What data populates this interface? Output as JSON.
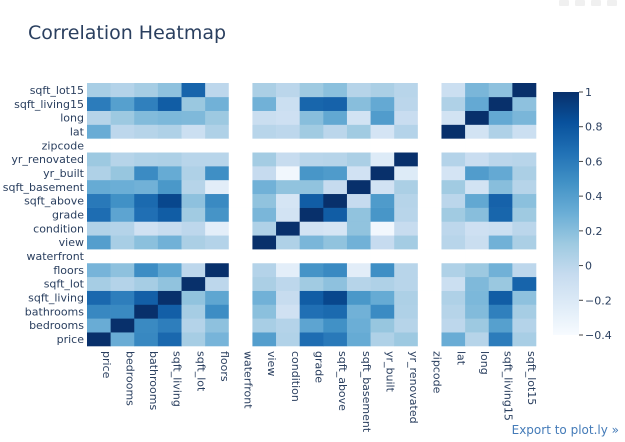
{
  "export_label": "Export to plot.ly »",
  "chart_data": {
    "type": "heatmap",
    "title": "Correlation Heatmap",
    "variables": [
      "price",
      "bedrooms",
      "bathrooms",
      "sqft_living",
      "sqft_lot",
      "floors",
      "waterfront",
      "view",
      "condition",
      "grade",
      "sqft_above",
      "sqft_basement",
      "yr_built",
      "yr_renovated",
      "zipcode",
      "lat",
      "long",
      "sqft_living15",
      "sqft_lot15"
    ],
    "x": [
      "price",
      "bedrooms",
      "bathrooms",
      "sqft_living",
      "sqft_lot",
      "floors",
      "waterfront",
      "view",
      "condition",
      "grade",
      "sqft_above",
      "sqft_basement",
      "yr_built",
      "yr_renovated",
      "zipcode",
      "lat",
      "long",
      "sqft_living15",
      "sqft_lot15"
    ],
    "y": [
      "price",
      "bedrooms",
      "bathrooms",
      "sqft_living",
      "sqft_lot",
      "floors",
      "waterfront",
      "view",
      "condition",
      "grade",
      "sqft_above",
      "sqft_basement",
      "yr_built",
      "yr_renovated",
      "zipcode",
      "lat",
      "long",
      "sqft_living15",
      "sqft_lot15"
    ],
    "z": [
      [
        1,
        0.31,
        0.53,
        0.7,
        0.09,
        0.26,
        null,
        0.4,
        0.04,
        0.67,
        0.61,
        0.32,
        0.05,
        0.13,
        null,
        0.31,
        0.02,
        0.59,
        0.08
      ],
      [
        0.31,
        1,
        0.52,
        0.58,
        0.03,
        0.18,
        null,
        0.08,
        0.03,
        0.36,
        0.48,
        0.3,
        0.15,
        0.02,
        null,
        -0.01,
        0.13,
        0.39,
        0.03
      ],
      [
        0.53,
        0.52,
        1,
        0.75,
        0.09,
        0.5,
        null,
        0.19,
        -0.12,
        0.66,
        0.69,
        0.28,
        0.51,
        0.05,
        null,
        0.02,
        0.22,
        0.57,
        0.09
      ],
      [
        0.7,
        0.58,
        0.75,
        1,
        0.17,
        0.35,
        null,
        0.28,
        -0.06,
        0.76,
        0.88,
        0.44,
        0.32,
        0.06,
        null,
        0.05,
        0.24,
        0.76,
        0.18
      ],
      [
        0.09,
        0.03,
        0.09,
        0.17,
        1,
        -0.01,
        null,
        0.07,
        -0.01,
        0.11,
        0.18,
        0.02,
        0.05,
        0.01,
        null,
        -0.09,
        0.23,
        0.14,
        0.72
      ],
      [
        0.26,
        0.18,
        0.5,
        0.35,
        -0.01,
        1,
        null,
        0.03,
        -0.26,
        0.46,
        0.52,
        -0.25,
        0.49,
        0.01,
        null,
        0.05,
        0.13,
        0.28,
        -0.01
      ],
      [
        null,
        null,
        null,
        null,
        null,
        null,
        null,
        null,
        null,
        null,
        null,
        null,
        null,
        null,
        null,
        null,
        null,
        null,
        null
      ],
      [
        0.4,
        0.08,
        0.19,
        0.28,
        0.07,
        0.03,
        null,
        1,
        0.05,
        0.25,
        0.17,
        0.28,
        -0.05,
        0.1,
        null,
        0.01,
        -0.08,
        0.28,
        0.07
      ],
      [
        0.04,
        0.03,
        -0.12,
        -0.06,
        -0.01,
        -0.26,
        null,
        0.05,
        1,
        -0.14,
        -0.16,
        0.17,
        -0.36,
        -0.06,
        null,
        -0.01,
        -0.11,
        -0.09,
        -0.0
      ],
      [
        0.67,
        0.36,
        0.66,
        0.76,
        0.11,
        0.46,
        null,
        0.25,
        -0.14,
        1,
        0.76,
        0.17,
        0.45,
        0.01,
        null,
        0.11,
        0.2,
        0.71,
        0.12
      ],
      [
        0.61,
        0.48,
        0.69,
        0.88,
        0.18,
        0.52,
        null,
        0.17,
        -0.16,
        0.76,
        1,
        -0.05,
        0.42,
        0.02,
        null,
        -0.0,
        0.34,
        0.73,
        0.19
      ],
      [
        0.32,
        0.3,
        0.28,
        0.44,
        0.02,
        -0.25,
        null,
        0.28,
        0.17,
        0.17,
        -0.05,
        1,
        -0.13,
        0.07,
        null,
        0.11,
        -0.14,
        0.2,
        0.02
      ],
      [
        0.05,
        0.15,
        0.51,
        0.32,
        0.05,
        0.49,
        null,
        -0.05,
        -0.36,
        0.45,
        0.42,
        -0.13,
        1,
        -0.22,
        null,
        -0.15,
        0.41,
        0.33,
        0.07
      ],
      [
        0.13,
        0.02,
        0.05,
        0.06,
        0.01,
        0.01,
        null,
        0.1,
        -0.06,
        0.01,
        0.02,
        0.07,
        -0.22,
        1,
        null,
        0.03,
        -0.07,
        -0.0,
        0.01
      ],
      [
        null,
        null,
        null,
        null,
        null,
        null,
        null,
        null,
        null,
        null,
        null,
        null,
        null,
        null,
        null,
        null,
        null,
        null,
        null
      ],
      [
        0.31,
        -0.01,
        0.02,
        0.05,
        -0.09,
        0.05,
        null,
        0.01,
        -0.01,
        0.11,
        -0.0,
        0.11,
        -0.15,
        0.03,
        null,
        1,
        -0.14,
        0.05,
        -0.09
      ],
      [
        0.02,
        0.13,
        0.22,
        0.24,
        0.23,
        0.13,
        null,
        -0.08,
        -0.11,
        0.2,
        0.34,
        -0.14,
        0.41,
        -0.07,
        null,
        -0.14,
        1,
        0.33,
        0.25
      ],
      [
        0.59,
        0.39,
        0.57,
        0.76,
        0.14,
        0.28,
        null,
        0.28,
        -0.09,
        0.71,
        0.73,
        0.2,
        0.33,
        -0.0,
        null,
        0.05,
        0.33,
        1,
        0.18
      ],
      [
        0.08,
        0.03,
        0.09,
        0.18,
        0.72,
        -0.01,
        null,
        0.07,
        -0.0,
        0.12,
        0.19,
        0.02,
        0.07,
        0.01,
        null,
        -0.09,
        0.25,
        0.18,
        1
      ]
    ],
    "zmin": -0.4,
    "zmax": 1,
    "colorscale": [
      [
        0,
        "#f7fbff"
      ],
      [
        0.125,
        "#deebf7"
      ],
      [
        0.25,
        "#c6dbef"
      ],
      [
        0.375,
        "#9ecae1"
      ],
      [
        0.5,
        "#6baed6"
      ],
      [
        0.625,
        "#4292c6"
      ],
      [
        0.75,
        "#2171b5"
      ],
      [
        0.875,
        "#08519c"
      ],
      [
        1,
        "#08306b"
      ]
    ],
    "missing_color": "#ffffff",
    "grid_background": "#e5ecf6",
    "colorbar_ticks": [
      1,
      0.8,
      0.6,
      0.4,
      0.2,
      0,
      -0.2,
      -0.4
    ],
    "colorbar_tick_labels": [
      "1",
      "0.8",
      "0.6",
      "0.4",
      "0.2",
      "0",
      "−0.2",
      "−0.4"
    ]
  }
}
